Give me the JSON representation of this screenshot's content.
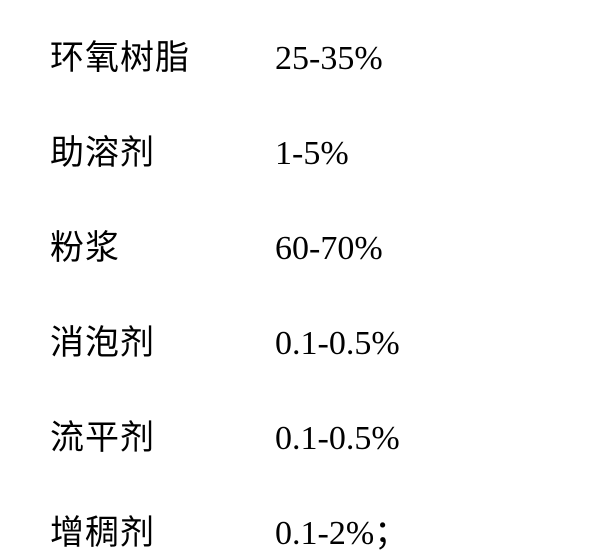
{
  "table": {
    "type": "table",
    "background_color": "#ffffff",
    "text_color": "#000000",
    "label_fontsize": 34,
    "value_fontsize": 34,
    "label_col_width": 225,
    "row_gap": 46,
    "rows": [
      {
        "label": "环氧树脂",
        "value": "25-35%"
      },
      {
        "label": "助溶剂",
        "value": "1-5%"
      },
      {
        "label": "粉浆",
        "value": "60-70%"
      },
      {
        "label": "消泡剂",
        "value": "0.1-0.5%"
      },
      {
        "label": "流平剂",
        "value": "0.1-0.5%"
      },
      {
        "label": "增稠剂",
        "value": "0.1-2%；"
      }
    ]
  }
}
